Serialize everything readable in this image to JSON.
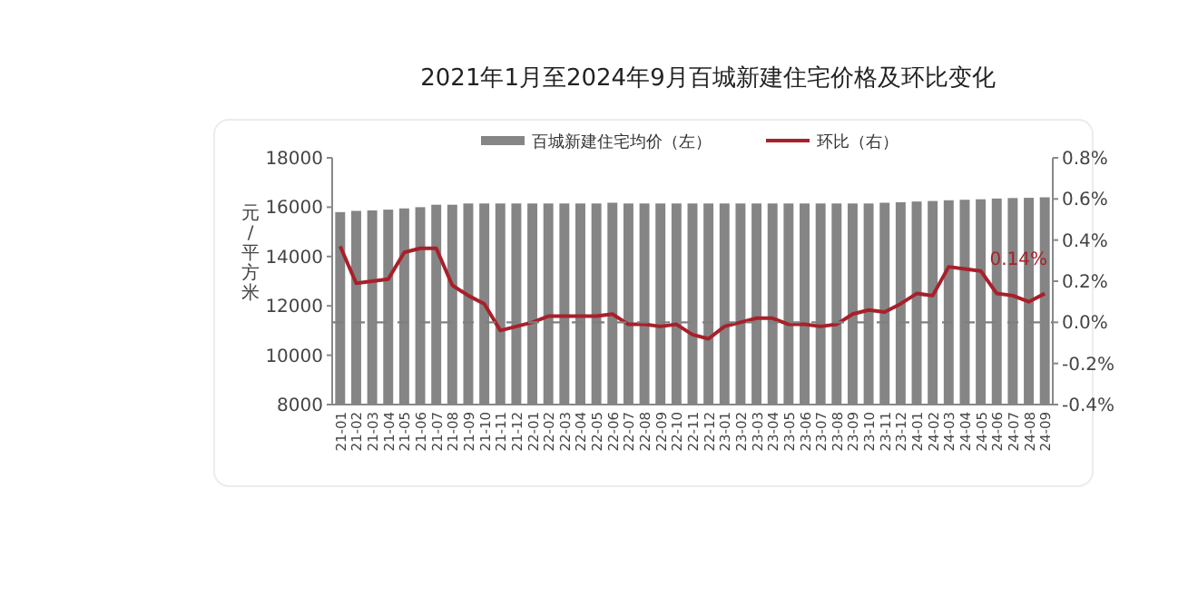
{
  "chart_data": {
    "type": "bar",
    "title": "2021年1月至2024年9月百城新建住宅价格及环比变化",
    "ylabel": "元/平方米",
    "categories": [
      "21-01",
      "21-02",
      "21-03",
      "21-04",
      "21-05",
      "21-06",
      "21-07",
      "21-08",
      "21-09",
      "21-10",
      "21-11",
      "21-12",
      "22-01",
      "22-02",
      "22-03",
      "22-04",
      "22-05",
      "22-06",
      "22-07",
      "22-08",
      "22-09",
      "22-10",
      "22-11",
      "22-12",
      "23-01",
      "23-02",
      "23-03",
      "23-04",
      "23-05",
      "23-06",
      "23-07",
      "23-08",
      "23-09",
      "23-10",
      "23-11",
      "23-12",
      "24-01",
      "24-02",
      "24-03",
      "24-04",
      "24-05",
      "24-06",
      "24-07",
      "24-08",
      "24-09"
    ],
    "series": [
      {
        "name": "百城新建住宅均价（左）",
        "color": "#858585",
        "values": [
          15800,
          15850,
          15870,
          15900,
          15950,
          16000,
          16100,
          16100,
          16150,
          16150,
          16150,
          16150,
          16150,
          16150,
          16150,
          16150,
          16150,
          16180,
          16150,
          16150,
          16150,
          16150,
          16150,
          16150,
          16150,
          16150,
          16150,
          16150,
          16150,
          16150,
          16150,
          16150,
          16150,
          16150,
          16180,
          16200,
          16230,
          16250,
          16280,
          16300,
          16320,
          16350,
          16370,
          16380,
          16400
        ]
      },
      {
        "name": "环比（右）",
        "type": "line",
        "axis": "y2",
        "color": "#a8202a",
        "values": [
          0.37,
          0.19,
          0.2,
          0.21,
          0.34,
          0.36,
          0.36,
          0.18,
          0.13,
          0.09,
          -0.04,
          -0.02,
          0.0,
          0.03,
          0.03,
          0.03,
          0.03,
          0.04,
          -0.01,
          -0.01,
          -0.02,
          -0.01,
          -0.06,
          -0.08,
          -0.02,
          0.0,
          0.02,
          0.02,
          -0.01,
          -0.01,
          -0.02,
          -0.01,
          0.04,
          0.06,
          0.05,
          0.09,
          0.14,
          0.13,
          0.27,
          0.26,
          0.25,
          0.14,
          0.13,
          0.1,
          0.14
        ]
      }
    ],
    "ylim": [
      8000,
      18000
    ],
    "yticks": [
      8000,
      10000,
      12000,
      14000,
      16000,
      18000
    ],
    "y2lim": [
      -0.4,
      0.8
    ],
    "y2ticks": [
      {
        "value": -0.4,
        "label": "-0.4%"
      },
      {
        "value": -0.2,
        "label": "-0.2%"
      },
      {
        "value": 0,
        "label": "0.0%"
      },
      {
        "value": 0.2,
        "label": "0.2%"
      },
      {
        "value": 0.4,
        "label": "0.4%"
      },
      {
        "value": 0.6,
        "label": "0.6%"
      },
      {
        "value": 0.8,
        "label": "0.8%"
      }
    ],
    "ref_lines": [
      {
        "axis": "y2",
        "value": 0,
        "color": "#7f7f7f",
        "line_style": "dashed"
      }
    ],
    "annotations": [
      "0.14%"
    ],
    "legend": "top",
    "grid": false
  }
}
